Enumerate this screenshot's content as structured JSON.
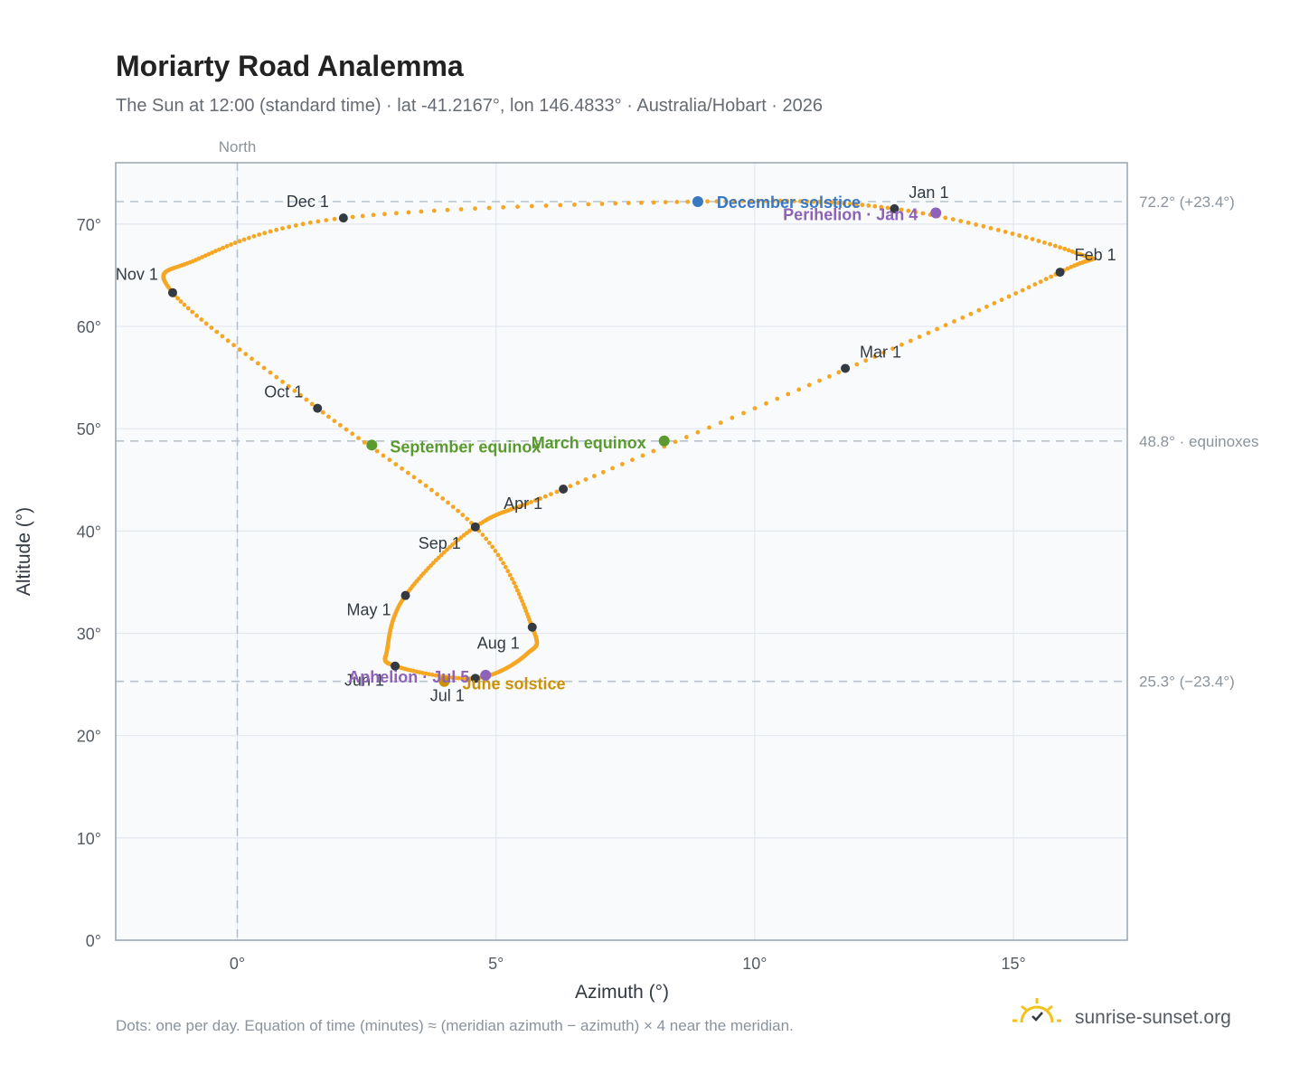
{
  "chart": {
    "title": "Moriarty Road Analemma",
    "subtitle": "The Sun at 12:00 (standard time) · lat -41.2167°, lon 146.4833° · Australia/Hobart · 2026",
    "north_label": "North",
    "footnote": "Dots: one per day. Equation of time (minutes) ≈ (meridian azimuth − azimuth) × 4 near the meridian.",
    "brand": "sunrise-sunset.org"
  },
  "colors": {
    "path": "#f5a623",
    "month_dot": "#333a42",
    "december_solstice": "#3a78c2",
    "june_solstice": "#c9920a",
    "equinox": "#5a9a2e",
    "perihelion": "#8e62b8",
    "aphelion": "#8e62b8",
    "plot_bg": "#f8fafc",
    "grid": "#e3e8ee",
    "refline": "#b8c2cc",
    "brand_sun": "#f3c11b"
  },
  "chart_data": {
    "type": "scatter",
    "title": "Moriarty Road Analemma",
    "xlabel": "Azimuth (°)",
    "ylabel": "Altitude (°)",
    "xlim": [
      -2.35,
      17.2
    ],
    "ylim": [
      0,
      76
    ],
    "x_ticks": [
      0,
      5,
      10,
      15
    ],
    "x_tick_labels": [
      "0°",
      "5°",
      "10°",
      "15°"
    ],
    "y_ticks": [
      0,
      10,
      20,
      30,
      40,
      50,
      60,
      70
    ],
    "y_tick_labels": [
      "0°",
      "10°",
      "20°",
      "30°",
      "40°",
      "50°",
      "60°",
      "70°"
    ],
    "grid": true,
    "series": [
      {
        "points": [
          {
            "x": 12.7,
            "y": 71.5
          },
          {
            "x": 16.2,
            "y": 67.2
          },
          {
            "x": 15.9,
            "y": 65.3
          },
          {
            "x": 11.8,
            "y": 55.9
          },
          {
            "x": 6.3,
            "y": 44.1
          },
          {
            "x": 4.6,
            "y": 40.4
          },
          {
            "x": 3.25,
            "y": 33.7
          },
          {
            "x": 2.9,
            "y": 28.5
          },
          {
            "x": 3.05,
            "y": 26.8
          },
          {
            "x": 4.6,
            "y": 25.6
          },
          {
            "x": 5.6,
            "y": 28.0
          },
          {
            "x": 5.7,
            "y": 30.6
          },
          {
            "x": 4.6,
            "y": 40.4
          },
          {
            "x": 1.55,
            "y": 52.0
          },
          {
            "x": -1.25,
            "y": 63.3
          },
          {
            "x": -0.8,
            "y": 66.5
          },
          {
            "x": 2.05,
            "y": 70.6
          },
          {
            "x": 8.9,
            "y": 72.2
          },
          {
            "x": 12.7,
            "y": 71.5
          }
        ]
      }
    ],
    "month_markers": [
      {
        "label": "Jan 1",
        "x": 12.7,
        "y": 71.5
      },
      {
        "label": "Feb 1",
        "x": 15.9,
        "y": 65.3
      },
      {
        "label": "Mar 1",
        "x": 11.75,
        "y": 55.9
      },
      {
        "label": "Apr 1",
        "x": 6.3,
        "y": 44.1
      },
      {
        "label": "May 1",
        "x": 3.25,
        "y": 33.7
      },
      {
        "label": "Jun 1",
        "x": 3.05,
        "y": 26.8
      },
      {
        "label": "Jul 1",
        "x": 4.6,
        "y": 25.6
      },
      {
        "label": "Aug 1",
        "x": 5.7,
        "y": 30.6
      },
      {
        "label": "Sep 1",
        "x": 4.6,
        "y": 40.4
      },
      {
        "label": "Oct 1",
        "x": 1.55,
        "y": 52.0
      },
      {
        "label": "Nov 1",
        "x": -1.25,
        "y": 63.3
      },
      {
        "label": "Dec 1",
        "x": 2.05,
        "y": 70.6
      }
    ],
    "events": [
      {
        "label": "December solstice",
        "x": 8.9,
        "y": 72.2,
        "color_key": "december_solstice"
      },
      {
        "label": "Perihelion · Jan 4",
        "x": 13.5,
        "y": 71.1,
        "color_key": "perihelion"
      },
      {
        "label": "March equinox",
        "x": 8.25,
        "y": 48.8,
        "color_key": "equinox"
      },
      {
        "label": "September equinox",
        "x": 2.6,
        "y": 48.4,
        "color_key": "equinox"
      },
      {
        "label": "June solstice",
        "x": 4.0,
        "y": 25.3,
        "color_key": "june_solstice"
      },
      {
        "label": "Aphelion · Jul 5",
        "x": 4.8,
        "y": 25.9,
        "color_key": "aphelion"
      }
    ],
    "reference_lines": [
      {
        "y": 72.2,
        "label": "72.2° (+23.4°)"
      },
      {
        "y": 48.8,
        "label": "48.8° · equinoxes"
      },
      {
        "y": 25.3,
        "label": "25.3° (−23.4°)"
      }
    ],
    "vertical_reference": {
      "x": 0,
      "label": "North"
    }
  }
}
